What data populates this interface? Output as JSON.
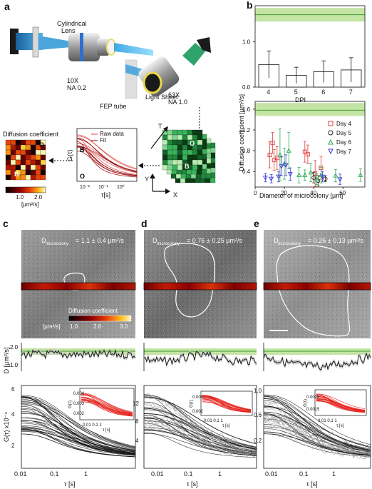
{
  "panels": {
    "a": "a",
    "b": "b",
    "c": "c",
    "d": "d",
    "e": "e"
  },
  "setup": {
    "cylindrical_lens_1": "Cylindrical",
    "cylindrical_lens_2": "Lens",
    "objective_left_1": "10X",
    "objective_left_2": "NA 0.2",
    "objective_right_1": "63X",
    "objective_right_2": "NA 1.0",
    "fep_tube": "FEP tube",
    "light_sheet": "Light Sheet",
    "diffusion_map_title": "Diffusion coefficient",
    "map_label_O": "O",
    "map_label_B": "B",
    "colorbar_ticks": [
      "1.0",
      "2.0"
    ],
    "colorbar_unit": "[µm²/s]",
    "acf_ylabel": "G(τ)",
    "acf_xlabel": "τ[s]",
    "acf_legend_raw": "Raw data",
    "acf_legend_fit": "Fit",
    "acf_xticks": [
      "10⁻²",
      "10⁻¹",
      "10⁰"
    ],
    "acf_B": "B",
    "acf_O": "O",
    "stack_axes": {
      "t": "T",
      "y": "Y",
      "x": "X"
    },
    "stack_labels": {
      "o": "O",
      "b": "B"
    }
  },
  "panel_b": {
    "ylabel": "Diffusion coefficient [µm²/s]",
    "top_xlabel": "DPI",
    "bottom_xlabel": "Diameter of microcolony [µm]",
    "top_yticks": [
      "1.0",
      "0.0"
    ],
    "bottom_yticks": [
      "1.6",
      "1.2",
      "0.8",
      "0.4"
    ],
    "top_xticks": [
      "4",
      "5",
      "6",
      "7"
    ],
    "bottom_xticks": [
      "0",
      "20",
      "40",
      "60"
    ],
    "legend": [
      "Day 4",
      "Day 5",
      "Day 6",
      "Day 7"
    ]
  },
  "panels_cde": {
    "c": {
      "d_label": "D",
      "d_sub": "microcolony",
      "d_value": "= 1.1 ± 0.4 µm²/s",
      "trace_yticks": [
        "2.0",
        "1.0"
      ],
      "g_yticks": [
        "6",
        "4",
        "2"
      ],
      "inset_yticks": [
        "0.004",
        "0.003",
        "0.002"
      ],
      "inset_xticks": [
        "0.01",
        "0.1",
        "1"
      ]
    },
    "d": {
      "d_label": "D",
      "d_sub": "microcolony",
      "d_value": "= 0.76 ± 0.25 µm²/s",
      "g_yticks": [
        "12",
        "8",
        "4"
      ],
      "inset_yticks": [
        "0.006",
        "0.002"
      ],
      "inset_xticks": [
        "0.01",
        "0.1",
        "1"
      ]
    },
    "e": {
      "d_label": "D",
      "d_sub": "microcolony",
      "d_value": "= 0.26 ± 0.13 µm²/s",
      "g_yticks": [
        "1.0",
        "0.6",
        "0.2"
      ],
      "inset_yticks": [
        "0.0025",
        "0.0015"
      ],
      "inset_xticks": [
        "0.01",
        "0.1",
        "1"
      ]
    }
  },
  "c_colorbar": {
    "title": "Diffusion coefficient",
    "unit": "[µm²/s]",
    "ticks": [
      "1.0",
      "2.0",
      "3.0"
    ]
  },
  "trace_ylabel": "D [µm²/s]",
  "g_ylabel": "G(τ) x10⁻⁴",
  "inset_ylabel": "G(τ)",
  "inset_xlabel": "τ [s]",
  "g_xticks": [
    "0.01",
    "0.1",
    "1"
  ],
  "g_xlabel": "τ [s]",
  "chart_data": [
    {
      "type": "bar",
      "panel": "b-top",
      "categories": [
        "4",
        "5",
        "6",
        "7"
      ],
      "values": [
        0.5,
        0.26,
        0.34,
        0.38
      ],
      "errors": [
        0.3,
        0.18,
        0.24,
        0.27
      ],
      "reference_band": [
        1.45,
        1.75
      ],
      "reference_line": 1.6,
      "xlabel": "DPI",
      "ylim": [
        0,
        1.8
      ]
    },
    {
      "type": "scatter",
      "panel": "b-bottom",
      "reference_band": [
        1.47,
        1.72
      ],
      "reference_line": 1.58,
      "xlabel": "Diameter of microcolony [µm]",
      "xlim": [
        0,
        75
      ],
      "ylim": [
        0.1,
        1.75
      ],
      "series": [
        {
          "name": "Day 4",
          "color": "#e03c3c",
          "marker": "square",
          "points": [
            [
              10,
              0.72,
              0.25
            ],
            [
              12,
              0.95,
              0.2
            ],
            [
              13,
              0.62,
              0.2
            ],
            [
              15,
              0.66,
              0.22
            ],
            [
              34,
              0.78,
              0.2
            ],
            [
              36,
              0.73,
              0.18
            ],
            [
              41,
              0.36,
              0.25
            ],
            [
              45,
              0.47,
              0.22
            ]
          ]
        },
        {
          "name": "Day 5",
          "color": "#222222",
          "marker": "circle",
          "points": [
            [
              40,
              0.28,
              0.1
            ],
            [
              43,
              0.22,
              0.1
            ],
            [
              48,
              0.26,
              0.06
            ]
          ]
        },
        {
          "name": "Day 6",
          "color": "#2cab52",
          "marker": "triangle-up",
          "points": [
            [
              17,
              0.72,
              0.5
            ],
            [
              20,
              0.55,
              0.3
            ],
            [
              23,
              0.8,
              0.35
            ],
            [
              30,
              0.33,
              0.15
            ],
            [
              34,
              0.33,
              0.1
            ],
            [
              38,
              0.38,
              0.18
            ],
            [
              42,
              0.25,
              0.1
            ],
            [
              45,
              0.33,
              0.15
            ],
            [
              55,
              0.32,
              0.12
            ],
            [
              72,
              0.33,
              0.12
            ]
          ]
        },
        {
          "name": "Day 7",
          "color": "#3a3ad6",
          "marker": "triangle-down",
          "points": [
            [
              7,
              0.28,
              0.08
            ],
            [
              11,
              0.26,
              0.08
            ],
            [
              16,
              0.3,
              0.1
            ],
            [
              18,
              0.5,
              0.18
            ],
            [
              21,
              0.52,
              0.2
            ],
            [
              24,
              0.35,
              0.12
            ],
            [
              46,
              0.3,
              0.1
            ],
            [
              58,
              0.25,
              0.1
            ]
          ]
        }
      ]
    }
  ]
}
